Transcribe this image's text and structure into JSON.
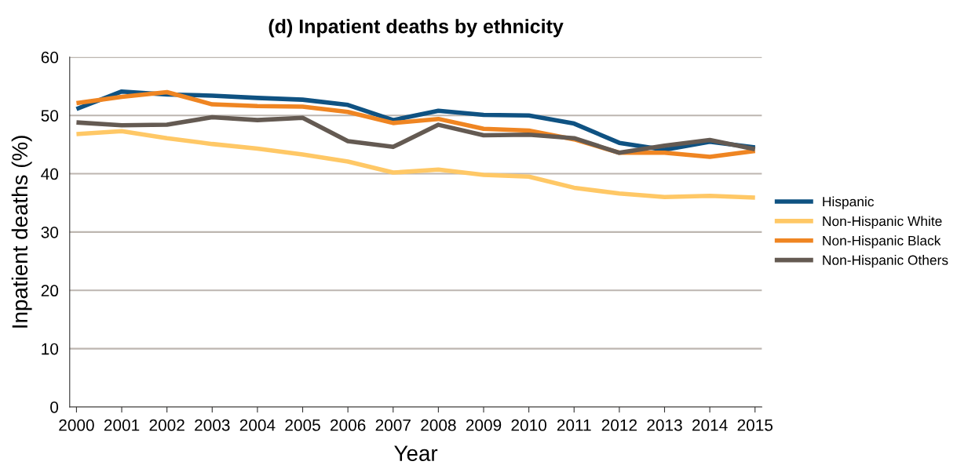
{
  "chart_data": {
    "type": "line",
    "title": "(d) Inpatient deaths by ethnicity",
    "xlabel": "Year",
    "ylabel": "Inpatient deaths (%)",
    "x": [
      2000,
      2001,
      2002,
      2003,
      2004,
      2005,
      2006,
      2007,
      2008,
      2009,
      2010,
      2011,
      2012,
      2013,
      2014,
      2015
    ],
    "series": [
      {
        "name": "Hispanic",
        "color": "#0f5282",
        "values": [
          51.1,
          54.1,
          53.6,
          53.4,
          53.0,
          52.7,
          51.8,
          49.2,
          50.8,
          50.1,
          50.0,
          48.6,
          45.3,
          44.1,
          45.5,
          44.5
        ]
      },
      {
        "name": "Non-Hispanic White",
        "color": "#ffc866",
        "values": [
          46.8,
          47.3,
          46.1,
          45.1,
          44.3,
          43.3,
          42.1,
          40.2,
          40.7,
          39.8,
          39.5,
          37.6,
          36.6,
          36.0,
          36.2,
          35.9
        ]
      },
      {
        "name": "Non-Hispanic Black",
        "color": "#ef8522",
        "values": [
          52.1,
          53.2,
          54.0,
          51.9,
          51.6,
          51.5,
          50.6,
          48.7,
          49.4,
          47.7,
          47.4,
          45.9,
          43.6,
          43.6,
          42.9,
          43.9
        ]
      },
      {
        "name": "Non-Hispanic Others",
        "color": "#645a52",
        "values": [
          48.8,
          48.3,
          48.4,
          49.7,
          49.2,
          49.6,
          45.6,
          44.6,
          48.4,
          46.6,
          46.7,
          46.1,
          43.6,
          44.8,
          45.8,
          44.2
        ]
      }
    ],
    "xlim": [
      1999.85,
      2015.15
    ],
    "xticks": [
      2000,
      2001,
      2002,
      2003,
      2004,
      2005,
      2006,
      2007,
      2008,
      2009,
      2010,
      2011,
      2012,
      2013,
      2014,
      2015
    ],
    "ylim": [
      0,
      60
    ],
    "yticks": [
      0,
      10,
      20,
      30,
      40,
      50,
      60
    ],
    "grid": "y",
    "legend": "right",
    "marker": "none",
    "line_style": "solid"
  }
}
